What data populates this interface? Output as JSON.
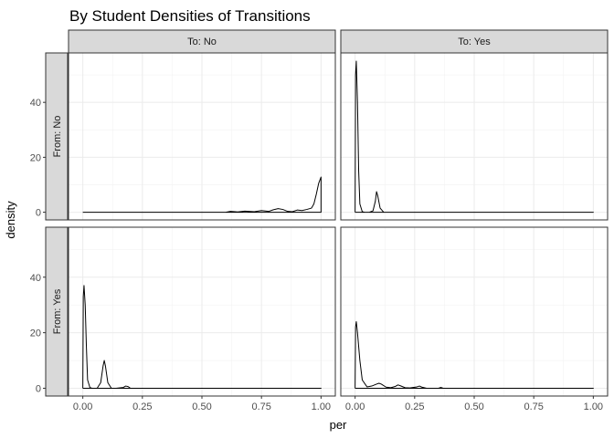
{
  "chart_data": {
    "type": "line",
    "title": "By Student Densities of Transitions",
    "xlabel": "per",
    "ylabel": "density",
    "xlim": [
      -0.06,
      1.06
    ],
    "ylim": [
      -2.8,
      58
    ],
    "x_ticks": [
      "0.00",
      "0.25",
      "0.50",
      "0.75",
      "1.00"
    ],
    "y_ticks": [
      "0",
      "20",
      "40"
    ],
    "grid": true,
    "facet_cols": [
      "To: No",
      "To: Yes"
    ],
    "facet_rows": [
      "From: No",
      "From: Yes"
    ],
    "panels": [
      {
        "row": 0,
        "col": 0,
        "x": [
          0,
          0.6,
          0.62,
          0.65,
          0.68,
          0.72,
          0.75,
          0.78,
          0.8,
          0.82,
          0.84,
          0.86,
          0.88,
          0.9,
          0.92,
          0.94,
          0.96,
          0.97,
          0.98,
          0.99,
          1.0,
          1.0,
          0
        ],
        "y": [
          0,
          0,
          0.3,
          0.1,
          0.4,
          0.2,
          0.6,
          0.3,
          0.9,
          1.3,
          1.0,
          0.3,
          0.2,
          0.8,
          0.6,
          1.0,
          1.5,
          3.0,
          6.5,
          10.5,
          12.8,
          0,
          0
        ]
      },
      {
        "row": 0,
        "col": 1,
        "x": [
          0,
          0.002,
          0.005,
          0.01,
          0.015,
          0.02,
          0.03,
          0.04,
          0.06,
          0.075,
          0.085,
          0.09,
          0.095,
          0.105,
          0.12,
          0.14,
          1.0,
          1.0,
          0
        ],
        "y": [
          0,
          50,
          55,
          40,
          15,
          3,
          0.2,
          0,
          0,
          0.5,
          4,
          7.5,
          6,
          1.5,
          0,
          0,
          0,
          0,
          0
        ]
      },
      {
        "row": 1,
        "col": 0,
        "x": [
          0,
          0.002,
          0.005,
          0.01,
          0.015,
          0.02,
          0.03,
          0.04,
          0.06,
          0.075,
          0.085,
          0.09,
          0.095,
          0.105,
          0.12,
          0.14,
          0.17,
          0.18,
          0.19,
          0.2,
          0.23,
          1.0,
          1.0,
          0
        ],
        "y": [
          0,
          33,
          37,
          30,
          15,
          3,
          0.2,
          0,
          0,
          2,
          8,
          10,
          8,
          2,
          0,
          0,
          0.3,
          0.8,
          0.6,
          0,
          0,
          0,
          0,
          0
        ]
      },
      {
        "row": 1,
        "col": 1,
        "x": [
          0,
          0.002,
          0.005,
          0.01,
          0.02,
          0.03,
          0.05,
          0.07,
          0.09,
          0.1,
          0.11,
          0.13,
          0.15,
          0.17,
          0.18,
          0.19,
          0.21,
          0.23,
          0.26,
          0.27,
          0.28,
          0.3,
          0.35,
          0.36,
          0.37,
          1.0,
          1.0,
          0
        ],
        "y": [
          0,
          22,
          24,
          20,
          10,
          3,
          0.5,
          0.8,
          1.5,
          1.8,
          1.5,
          0.4,
          0.2,
          0.7,
          1.2,
          0.9,
          0.2,
          0.1,
          0.5,
          0.8,
          0.4,
          0,
          0,
          0.3,
          0,
          0,
          0,
          0
        ]
      }
    ]
  }
}
